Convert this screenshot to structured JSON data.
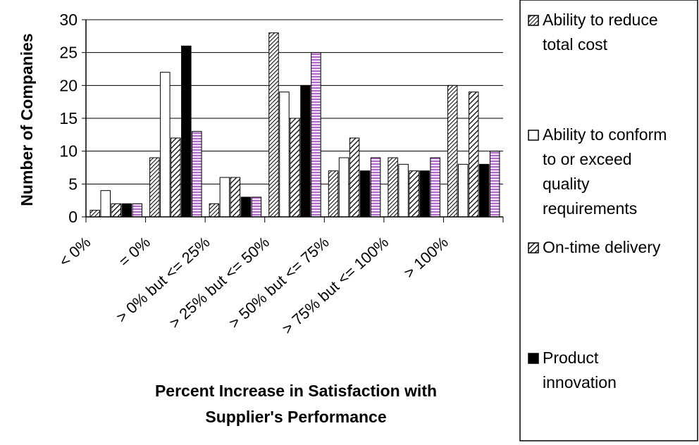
{
  "chart_data": {
    "type": "bar",
    "ylabel": "Number of Companies",
    "xlabel_lines": [
      "Percent Increase in Satisfaction with",
      "Supplier's Performance"
    ],
    "ylim": [
      0,
      30
    ],
    "yticks": [
      0,
      5,
      10,
      15,
      20,
      25,
      30
    ],
    "grid": true,
    "legend_position": "right",
    "categories": [
      "< 0%",
      "= 0%",
      "> 0% but <= 25%",
      "> 25% but <= 50%",
      "> 50% but <= 75%",
      "> 75% but <= 100%",
      "> 100%"
    ],
    "series": [
      {
        "name": "Ability to reduce total cost",
        "legend_lines": [
          "Ability to reduce",
          "total cost"
        ],
        "pattern": "diag-fine",
        "color": "#ffffff",
        "values": [
          1,
          9,
          2,
          28,
          7,
          9,
          20
        ]
      },
      {
        "name": "Ability to conform to or exceed quality requirements",
        "legend_lines": [
          "Ability to conform",
          "to or exceed",
          "quality",
          "requirements"
        ],
        "pattern": "white",
        "color": "#ffffff",
        "values": [
          4,
          22,
          6,
          19,
          9,
          8,
          8
        ]
      },
      {
        "name": "On-time delivery",
        "legend_lines": [
          "On-time delivery"
        ],
        "pattern": "diag-bold",
        "color": "#ffffff",
        "values": [
          2,
          12,
          6,
          15,
          12,
          7,
          19
        ]
      },
      {
        "name": "Product innovation",
        "legend_lines": [
          "Product",
          "innovation"
        ],
        "pattern": "black",
        "color": "#000000",
        "values": [
          2,
          26,
          3,
          20,
          7,
          7,
          8
        ]
      },
      {
        "name": "",
        "pattern": "stripe-purple",
        "color": "#b06ac8",
        "values": [
          2,
          13,
          3,
          25,
          9,
          9,
          10
        ]
      }
    ]
  }
}
